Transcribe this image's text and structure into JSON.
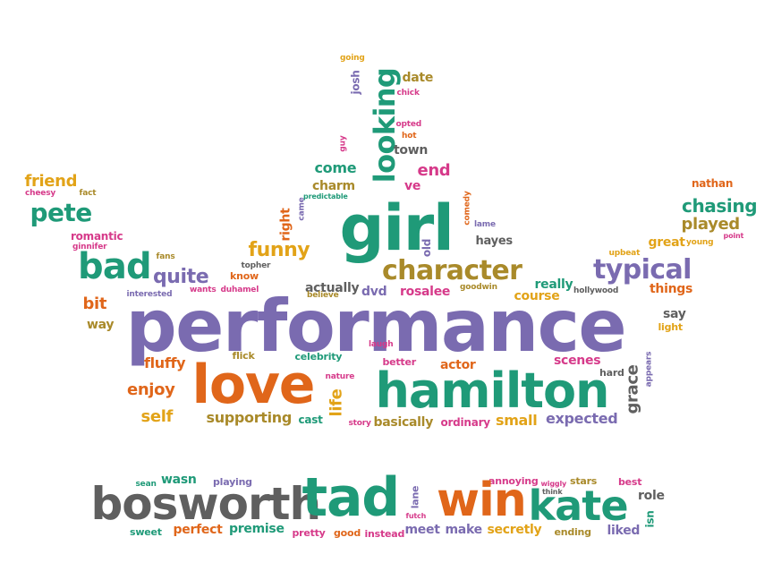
{
  "palette": {
    "purple": "#7a6bb0",
    "green": "#1f9a78",
    "orange": "#e0661a",
    "gold": "#a98a2a",
    "grey": "#5f5f5f",
    "pink": "#d63a8a",
    "yellow": "#e2a318",
    "brown": "#b07a2a"
  },
  "words": [
    {
      "text": "performance",
      "color": "purple"
    },
    {
      "text": "love",
      "color": "orange"
    },
    {
      "text": "hamilton",
      "color": "green"
    },
    {
      "text": "girl",
      "color": "green"
    },
    {
      "text": "looking",
      "color": "green"
    },
    {
      "text": "character",
      "color": "gold"
    },
    {
      "text": "typical",
      "color": "purple"
    },
    {
      "text": "chasing",
      "color": "green"
    },
    {
      "text": "bad",
      "color": "green"
    },
    {
      "text": "quite",
      "color": "purple"
    },
    {
      "text": "pete",
      "color": "green"
    },
    {
      "text": "friend",
      "color": "yellow"
    },
    {
      "text": "cheesy",
      "color": "pink"
    },
    {
      "text": "fact",
      "color": "gold"
    },
    {
      "text": "romantic",
      "color": "pink"
    },
    {
      "text": "ginnifer",
      "color": "pink"
    },
    {
      "text": "fans",
      "color": "gold"
    },
    {
      "text": "funny",
      "color": "yellow"
    },
    {
      "text": "right",
      "color": "orange"
    },
    {
      "text": "topher",
      "color": "grey"
    },
    {
      "text": "know",
      "color": "orange"
    },
    {
      "text": "wants",
      "color": "pink"
    },
    {
      "text": "duhamel",
      "color": "pink"
    },
    {
      "text": "interested",
      "color": "purple"
    },
    {
      "text": "bit",
      "color": "orange"
    },
    {
      "text": "way",
      "color": "gold"
    },
    {
      "text": "actually",
      "color": "grey"
    },
    {
      "text": "believe",
      "color": "gold"
    },
    {
      "text": "dvd",
      "color": "purple"
    },
    {
      "text": "rosalee",
      "color": "pink"
    },
    {
      "text": "goodwin",
      "color": "gold"
    },
    {
      "text": "really",
      "color": "green"
    },
    {
      "text": "course",
      "color": "yellow"
    },
    {
      "text": "hollywood",
      "color": "grey"
    },
    {
      "text": "things",
      "color": "orange"
    },
    {
      "text": "great",
      "color": "yellow"
    },
    {
      "text": "young",
      "color": "yellow"
    },
    {
      "text": "played",
      "color": "gold"
    },
    {
      "text": "nathan",
      "color": "orange"
    },
    {
      "text": "point",
      "color": "pink"
    },
    {
      "text": "upbeat",
      "color": "yellow"
    },
    {
      "text": "hayes",
      "color": "grey"
    },
    {
      "text": "lame",
      "color": "purple"
    },
    {
      "text": "comedy",
      "color": "orange"
    },
    {
      "text": "old",
      "color": "purple"
    },
    {
      "text": "end",
      "color": "pink"
    },
    {
      "text": "ve",
      "color": "pink"
    },
    {
      "text": "come",
      "color": "green"
    },
    {
      "text": "charm",
      "color": "gold"
    },
    {
      "text": "predictable",
      "color": "green"
    },
    {
      "text": "came",
      "color": "purple"
    },
    {
      "text": "town",
      "color": "grey"
    },
    {
      "text": "hot",
      "color": "orange"
    },
    {
      "text": "opted",
      "color": "pink"
    },
    {
      "text": "guy",
      "color": "pink"
    },
    {
      "text": "chick",
      "color": "pink"
    },
    {
      "text": "date",
      "color": "gold"
    },
    {
      "text": "josh",
      "color": "purple"
    },
    {
      "text": "going",
      "color": "yellow"
    },
    {
      "text": "say",
      "color": "grey"
    },
    {
      "text": "light",
      "color": "yellow"
    },
    {
      "text": "fluffy",
      "color": "orange"
    },
    {
      "text": "flick",
      "color": "gold"
    },
    {
      "text": "celebrity",
      "color": "green"
    },
    {
      "text": "laugh",
      "color": "pink"
    },
    {
      "text": "nature",
      "color": "pink"
    },
    {
      "text": "better",
      "color": "pink"
    },
    {
      "text": "actor",
      "color": "orange"
    },
    {
      "text": "scenes",
      "color": "pink"
    },
    {
      "text": "hard",
      "color": "grey"
    },
    {
      "text": "grace",
      "color": "grey"
    },
    {
      "text": "appears",
      "color": "purple"
    },
    {
      "text": "enjoy",
      "color": "orange"
    },
    {
      "text": "self",
      "color": "yellow"
    },
    {
      "text": "supporting",
      "color": "gold"
    },
    {
      "text": "cast",
      "color": "green"
    },
    {
      "text": "life",
      "color": "yellow"
    },
    {
      "text": "story",
      "color": "pink"
    },
    {
      "text": "basically",
      "color": "gold"
    },
    {
      "text": "ordinary",
      "color": "pink"
    },
    {
      "text": "small",
      "color": "yellow"
    },
    {
      "text": "expected",
      "color": "purple"
    },
    {
      "text": "sean",
      "color": "green"
    },
    {
      "text": "wasn",
      "color": "green"
    },
    {
      "text": "playing",
      "color": "purple"
    },
    {
      "text": "annoying",
      "color": "pink"
    },
    {
      "text": "wiggly",
      "color": "pink"
    },
    {
      "text": "stars",
      "color": "gold"
    },
    {
      "text": "best",
      "color": "pink"
    },
    {
      "text": "think",
      "color": "grey"
    },
    {
      "text": "role",
      "color": "grey"
    },
    {
      "text": "bosworth",
      "color": "grey"
    },
    {
      "text": "tad",
      "color": "green"
    },
    {
      "text": "lane",
      "color": "purple"
    },
    {
      "text": "win",
      "color": "orange"
    },
    {
      "text": "kate",
      "color": "green"
    },
    {
      "text": "futch",
      "color": "pink"
    },
    {
      "text": "isn",
      "color": "green"
    },
    {
      "text": "sweet",
      "color": "green"
    },
    {
      "text": "perfect",
      "color": "orange"
    },
    {
      "text": "premise",
      "color": "green"
    },
    {
      "text": "pretty",
      "color": "pink"
    },
    {
      "text": "good",
      "color": "orange"
    },
    {
      "text": "instead",
      "color": "pink"
    },
    {
      "text": "meet",
      "color": "purple"
    },
    {
      "text": "make",
      "color": "purple"
    },
    {
      "text": "secretly",
      "color": "yellow"
    },
    {
      "text": "ending",
      "color": "gold"
    },
    {
      "text": "liked",
      "color": "purple"
    }
  ]
}
